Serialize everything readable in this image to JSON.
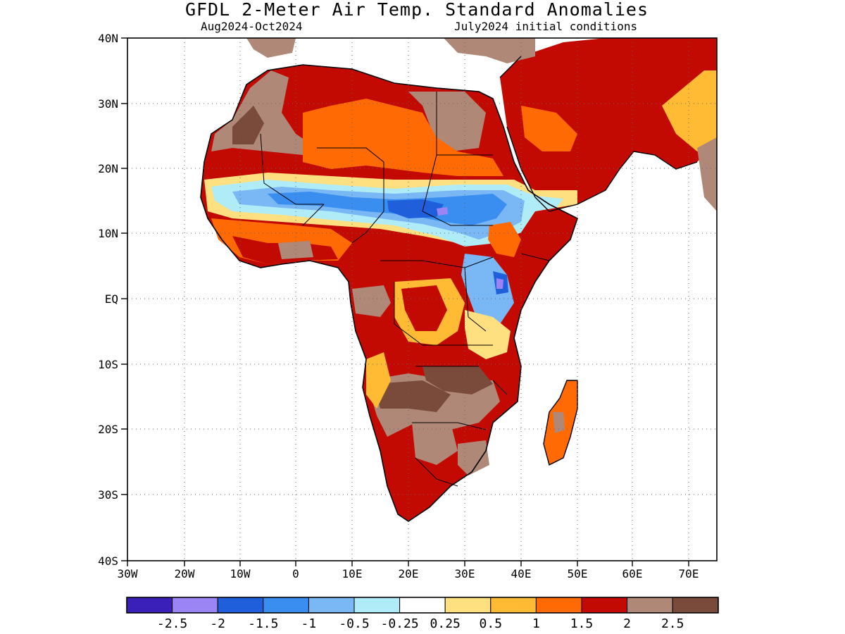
{
  "header": {
    "title": "GFDL 2-Meter Air Temp. Standard Anomalies",
    "period": "Aug2024-Oct2024",
    "initial_conditions": "July2024 initial conditions"
  },
  "axes": {
    "lat_labels": [
      "40N",
      "30N",
      "20N",
      "10N",
      "EQ",
      "10S",
      "20S",
      "30S",
      "40S"
    ],
    "lon_labels": [
      "30W",
      "20W",
      "10W",
      "0",
      "10E",
      "20E",
      "30E",
      "40E",
      "50E",
      "60E",
      "70E"
    ]
  },
  "colorbar": {
    "colors": [
      "#3a1fb8",
      "#9b85f5",
      "#1f5fdc",
      "#3a8ef0",
      "#79b7f5",
      "#b0ecf7",
      "#ffffff",
      "#ffe080",
      "#ffbb33",
      "#ff6a05",
      "#c20a02",
      "#b08878",
      "#7a4a3a"
    ],
    "labels": [
      "-2.5",
      "-2",
      "-1.5",
      "-1",
      "-0.5",
      "-0.25",
      "0.25",
      "0.5",
      "1",
      "1.5",
      "2",
      "2.5"
    ]
  }
}
